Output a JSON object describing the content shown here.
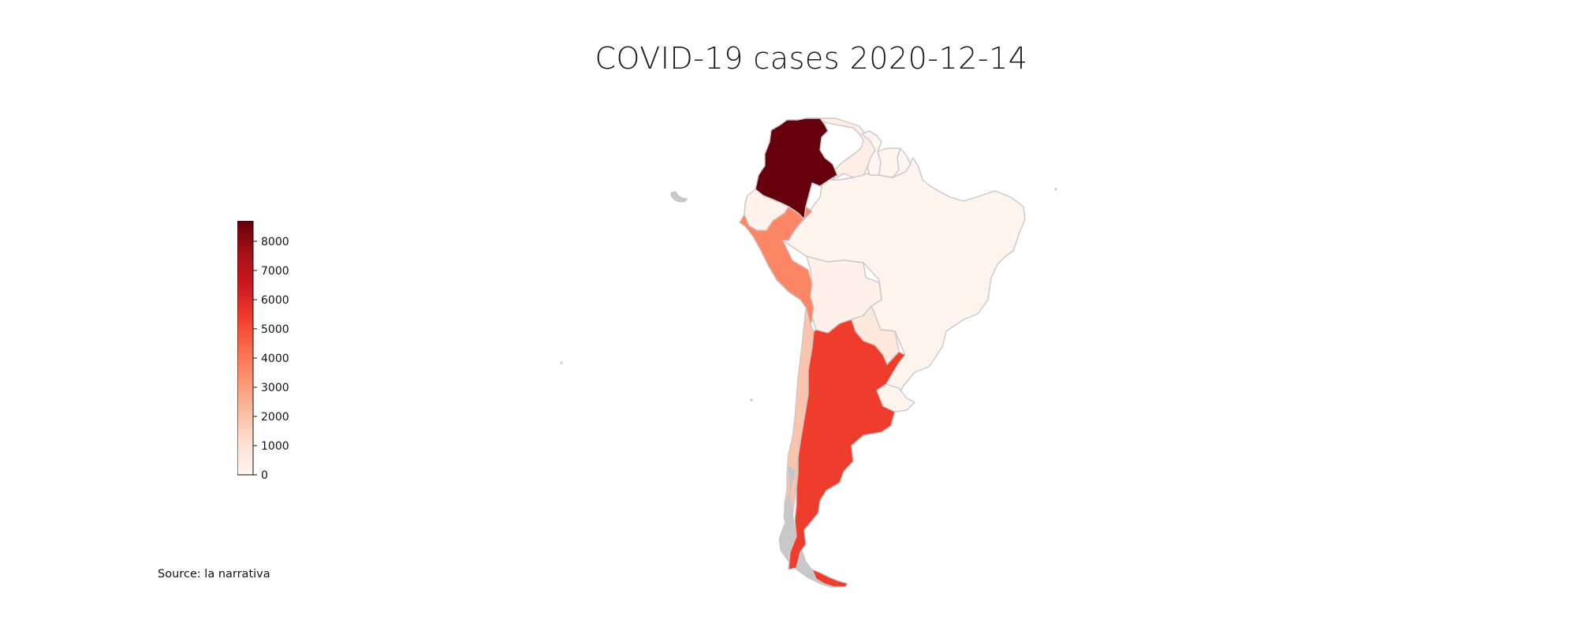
{
  "title": "COVID-19 cases 2020-12-14",
  "source": "Source: la narrativa",
  "colormap": {
    "name": "Reds",
    "stops": [
      "#fff5f0",
      "#fee0d2",
      "#fcbba1",
      "#fc9272",
      "#fb6a4a",
      "#ef3b2c",
      "#cb181d",
      "#a50f15",
      "#67000d"
    ],
    "vmin": 0,
    "vmax": 8700
  },
  "no_data_color": "#c8c8c8",
  "colorbar": {
    "ticks": [
      0,
      1000,
      2000,
      3000,
      4000,
      5000,
      6000,
      7000,
      8000
    ]
  },
  "countries": [
    {
      "name": "Colombia",
      "value": 8700
    },
    {
      "name": "Venezuela",
      "value": 350
    },
    {
      "name": "Guyana",
      "value": 40
    },
    {
      "name": "Suriname",
      "value": 20
    },
    {
      "name": "French Guiana",
      "value": 30
    },
    {
      "name": "Ecuador",
      "value": 150
    },
    {
      "name": "Peru",
      "value": 3600
    },
    {
      "name": "Brazil",
      "value": 100
    },
    {
      "name": "Bolivia",
      "value": 200
    },
    {
      "name": "Paraguay",
      "value": 700
    },
    {
      "name": "Chile",
      "value": 1900
    },
    {
      "name": "Argentina",
      "value": 5400
    },
    {
      "name": "Uruguay",
      "value": 100
    }
  ]
}
